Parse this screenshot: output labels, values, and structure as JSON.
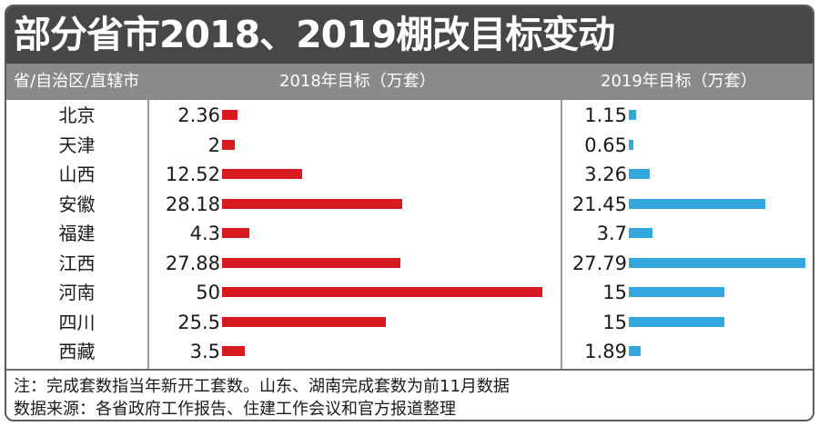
{
  "title": "部分省市2018、2019棚改目标变动",
  "header": {
    "col_province": "省/自治区/直辖市",
    "col_2018": "2018年目标（万套）",
    "col_2019": "2019年目标（万套）"
  },
  "chart_data": {
    "type": "bar",
    "title": "部分省市2018、2019棚改目标变动",
    "categories": [
      "北京",
      "天津",
      "山西",
      "安徽",
      "福建",
      "江西",
      "河南",
      "四川",
      "西藏"
    ],
    "series": [
      {
        "name": "2018年目标（万套）",
        "values": [
          2.36,
          2,
          12.52,
          28.18,
          4.3,
          27.88,
          50,
          25.5,
          3.5
        ],
        "labels": [
          "2.36",
          "2",
          "12.52",
          "28.18",
          "4.3",
          "27.88",
          "50",
          "25.5",
          "3.5"
        ],
        "color": "#d71920"
      },
      {
        "name": "2019年目标（万套）",
        "values": [
          1.15,
          0.65,
          3.26,
          21.45,
          3.7,
          27.79,
          15,
          15,
          1.89
        ],
        "labels": [
          "1.15",
          "0.65",
          "3.26",
          "21.45",
          "3.7",
          "27.79",
          "15",
          "15",
          "1.89"
        ],
        "color": "#32a8de"
      }
    ]
  },
  "footer": {
    "note": "注：完成套数指当年新开工套数。山东、湖南完成套数为前11月数据",
    "source": "数据来源：各省政府工作报告、住建工作会议和官方报道整理"
  }
}
